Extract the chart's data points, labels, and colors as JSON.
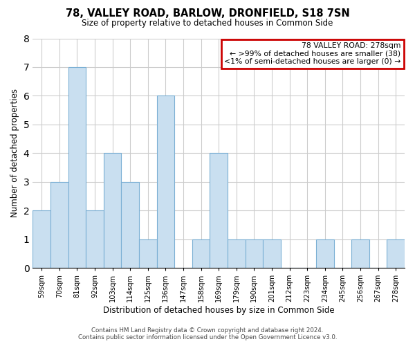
{
  "title": "78, VALLEY ROAD, BARLOW, DRONFIELD, S18 7SN",
  "subtitle": "Size of property relative to detached houses in Common Side",
  "xlabel": "Distribution of detached houses by size in Common Side",
  "ylabel": "Number of detached properties",
  "bar_labels": [
    "59sqm",
    "70sqm",
    "81sqm",
    "92sqm",
    "103sqm",
    "114sqm",
    "125sqm",
    "136sqm",
    "147sqm",
    "158sqm",
    "169sqm",
    "179sqm",
    "190sqm",
    "201sqm",
    "212sqm",
    "223sqm",
    "234sqm",
    "245sqm",
    "256sqm",
    "267sqm",
    "278sqm"
  ],
  "bar_values": [
    2,
    3,
    7,
    2,
    4,
    3,
    1,
    6,
    0,
    1,
    4,
    1,
    1,
    1,
    0,
    0,
    1,
    0,
    1,
    0,
    1
  ],
  "bar_color": "#c9dff0",
  "bar_edgecolor": "#7aafd4",
  "highlight_box_color": "#cc0000",
  "ylim": [
    0,
    8
  ],
  "yticks": [
    0,
    1,
    2,
    3,
    4,
    5,
    6,
    7,
    8
  ],
  "legend_title": "78 VALLEY ROAD: 278sqm",
  "legend_line1": "← >99% of detached houses are smaller (38)",
  "legend_line2": "<1% of semi-detached houses are larger (0) →",
  "footer_line1": "Contains HM Land Registry data © Crown copyright and database right 2024.",
  "footer_line2": "Contains public sector information licensed under the Open Government Licence v3.0.",
  "bg_color": "#ffffff",
  "grid_color": "#cccccc"
}
